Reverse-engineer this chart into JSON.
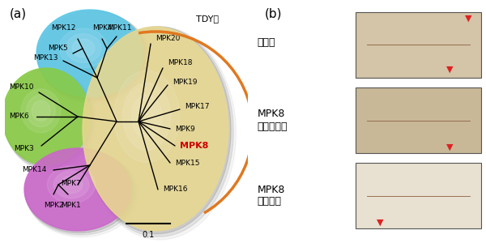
{
  "panel_a_label": "(a)",
  "panel_b_label": "(b)",
  "tdy_label": "TDY型",
  "scale_label": "0.1",
  "leaf_labels": [
    "野生型",
    "MPK8\n遵伝子破壊",
    "MPK8\n過剰発現"
  ],
  "mpk8_label": "MPK8",
  "orange_arrow_color": "#e07820",
  "red_arrow_color": "#dd2222",
  "bg_color": "#ffffff",
  "tree_color": "#000000",
  "blue_color": "#5bc8e8",
  "green_color": "#88cc44",
  "purple_color": "#cc66cc",
  "yellow_color": "#e8d890",
  "mpk8_color": "#cc0000",
  "scale_label_val": "0.1"
}
